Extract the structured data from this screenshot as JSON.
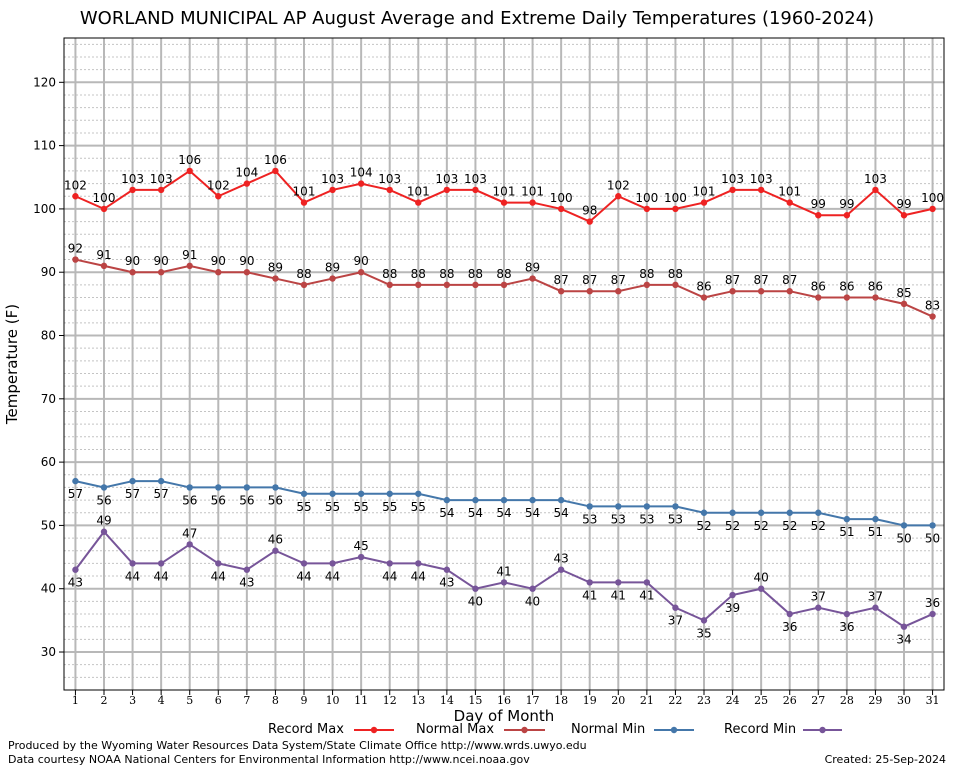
{
  "title": "WORLAND MUNICIPAL AP August Average and Extreme Daily Temperatures (1960-2024)",
  "footer": {
    "produced_by": "Produced by the Wyoming Water Resources Data System/State Climate Office http://www.wrds.uwyo.edu",
    "courtesy": "Data courtesy NOAA National Centers for Environmental Information http://www.ncei.noaa.gov",
    "created": "Created: 25-Sep-2024"
  },
  "chart_data": {
    "type": "line",
    "title": "WORLAND MUNICIPAL AP August Average and Extreme Daily Temperatures (1960-2024)",
    "xlabel": "Day of Month",
    "ylabel": "Temperature (F)",
    "x": [
      1,
      2,
      3,
      4,
      5,
      6,
      7,
      8,
      9,
      10,
      11,
      12,
      13,
      14,
      15,
      16,
      17,
      18,
      19,
      20,
      21,
      22,
      23,
      24,
      25,
      26,
      27,
      28,
      29,
      30,
      31
    ],
    "xlim": [
      0.6,
      31.4
    ],
    "ylim": [
      24,
      127
    ],
    "yticks": [
      30,
      40,
      50,
      60,
      70,
      80,
      90,
      100,
      110,
      120
    ],
    "grid": true,
    "legend_position": "bottom",
    "series": [
      {
        "name": "Record Max",
        "color": "#ee2222",
        "label_position": "above",
        "values": [
          102,
          100,
          103,
          103,
          106,
          102,
          104,
          106,
          101,
          103,
          104,
          103,
          101,
          103,
          103,
          101,
          101,
          100,
          98,
          102,
          100,
          100,
          101,
          103,
          103,
          101,
          99,
          99,
          103,
          99,
          100
        ]
      },
      {
        "name": "Normal Max",
        "color": "#bb4444",
        "label_position": "above",
        "values": [
          92,
          91,
          90,
          90,
          91,
          90,
          90,
          89,
          88,
          89,
          90,
          88,
          88,
          88,
          88,
          88,
          89,
          87,
          87,
          87,
          88,
          88,
          86,
          87,
          87,
          87,
          86,
          86,
          86,
          85,
          83
        ]
      },
      {
        "name": "Normal Min",
        "color": "#4477aa",
        "label_position": "below",
        "values": [
          57,
          56,
          57,
          57,
          56,
          56,
          56,
          56,
          55,
          55,
          55,
          55,
          55,
          54,
          54,
          54,
          54,
          54,
          53,
          53,
          53,
          53,
          52,
          52,
          52,
          52,
          52,
          51,
          51,
          50,
          50
        ]
      },
      {
        "name": "Record Min",
        "color": "#775599",
        "label_position": "mixed",
        "values": [
          43,
          49,
          44,
          44,
          47,
          44,
          43,
          46,
          44,
          44,
          45,
          44,
          44,
          43,
          40,
          41,
          40,
          43,
          41,
          41,
          41,
          37,
          35,
          39,
          40,
          36,
          37,
          36,
          37,
          34,
          36
        ]
      }
    ]
  }
}
